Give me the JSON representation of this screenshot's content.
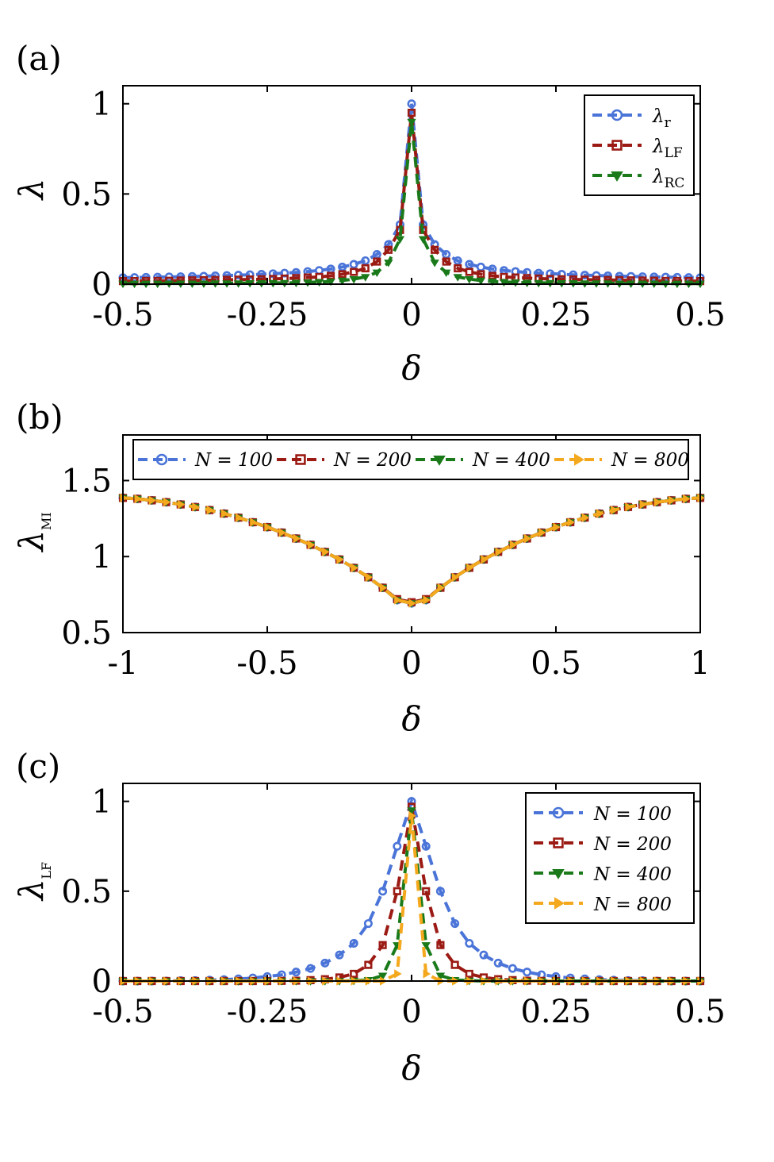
{
  "chart_data": [
    {
      "type": "line",
      "panel_label": "(a)",
      "xlabel": "δ",
      "ylabel": "λ",
      "xlim": [
        -0.5,
        0.5
      ],
      "ylim": [
        0,
        1.1
      ],
      "xticks": [
        -0.5,
        -0.25,
        0,
        0.25,
        0.5
      ],
      "xtick_labels": [
        "-0.5",
        "-0.25",
        "0",
        "0.25",
        "0.5"
      ],
      "yticks": [
        0,
        0.5,
        1
      ],
      "ytick_labels": [
        "0",
        "0.5",
        "1"
      ],
      "legend_position": "top-right",
      "x": [
        -0.5,
        -0.48,
        -0.46,
        -0.44,
        -0.42,
        -0.4,
        -0.38,
        -0.36,
        -0.34,
        -0.32,
        -0.3,
        -0.28,
        -0.26,
        -0.24,
        -0.22,
        -0.2,
        -0.18,
        -0.16,
        -0.14,
        -0.12,
        -0.1,
        -0.08,
        -0.06,
        -0.04,
        -0.02,
        0,
        0.02,
        0.04,
        0.06,
        0.08,
        0.1,
        0.12,
        0.14,
        0.16,
        0.18,
        0.2,
        0.22,
        0.24,
        0.26,
        0.28,
        0.3,
        0.32,
        0.34,
        0.36,
        0.38,
        0.4,
        0.42,
        0.44,
        0.46,
        0.48,
        0.5
      ],
      "series": [
        {
          "name": "λ",
          "sub": "r",
          "color": "#4a74d8",
          "marker": "circle",
          "values": [
            0.036,
            0.037,
            0.038,
            0.039,
            0.04,
            0.041,
            0.043,
            0.044,
            0.046,
            0.048,
            0.05,
            0.052,
            0.055,
            0.058,
            0.061,
            0.065,
            0.07,
            0.076,
            0.084,
            0.095,
            0.11,
            0.13,
            0.165,
            0.22,
            0.33,
            1.0,
            0.33,
            0.22,
            0.165,
            0.13,
            0.11,
            0.095,
            0.084,
            0.076,
            0.07,
            0.065,
            0.061,
            0.058,
            0.055,
            0.052,
            0.05,
            0.048,
            0.046,
            0.044,
            0.043,
            0.041,
            0.04,
            0.039,
            0.038,
            0.037,
            0.036
          ]
        },
        {
          "name": "λ",
          "sub": "LF",
          "color": "#9b1b14",
          "marker": "square",
          "values": [
            0.017,
            0.017,
            0.018,
            0.018,
            0.019,
            0.02,
            0.021,
            0.022,
            0.023,
            0.024,
            0.025,
            0.026,
            0.027,
            0.029,
            0.031,
            0.034,
            0.037,
            0.04,
            0.046,
            0.055,
            0.068,
            0.088,
            0.125,
            0.19,
            0.3,
            0.95,
            0.3,
            0.19,
            0.125,
            0.088,
            0.068,
            0.055,
            0.046,
            0.04,
            0.037,
            0.034,
            0.031,
            0.029,
            0.027,
            0.026,
            0.025,
            0.024,
            0.023,
            0.022,
            0.021,
            0.02,
            0.019,
            0.018,
            0.018,
            0.017,
            0.017
          ]
        },
        {
          "name": "λ",
          "sub": "RC",
          "color": "#1a7a1a",
          "marker": "triangle-down",
          "values": [
            0.003,
            0.003,
            0.003,
            0.003,
            0.004,
            0.004,
            0.004,
            0.004,
            0.005,
            0.005,
            0.005,
            0.006,
            0.006,
            0.007,
            0.007,
            0.008,
            0.01,
            0.012,
            0.015,
            0.02,
            0.028,
            0.04,
            0.065,
            0.12,
            0.25,
            0.9,
            0.25,
            0.12,
            0.065,
            0.04,
            0.028,
            0.02,
            0.015,
            0.012,
            0.01,
            0.008,
            0.007,
            0.007,
            0.006,
            0.006,
            0.005,
            0.005,
            0.005,
            0.004,
            0.004,
            0.004,
            0.004,
            0.003,
            0.003,
            0.003,
            0.003
          ]
        }
      ]
    },
    {
      "type": "line",
      "panel_label": "(b)",
      "xlabel": "δ",
      "ylabel": "λ",
      "ylabel_sub": "MI",
      "xlim": [
        -1,
        1
      ],
      "ylim": [
        0.5,
        1.8
      ],
      "xticks": [
        -1,
        -0.5,
        0,
        0.5,
        1
      ],
      "xtick_labels": [
        "-1",
        "-0.5",
        "0",
        "0.5",
        "1"
      ],
      "yticks": [
        0.5,
        1,
        1.5
      ],
      "ytick_labels": [
        "0.5",
        "1",
        "1.5"
      ],
      "legend_position": "top",
      "x": [
        -1,
        -0.95,
        -0.9,
        -0.85,
        -0.8,
        -0.75,
        -0.7,
        -0.65,
        -0.6,
        -0.55,
        -0.5,
        -0.45,
        -0.4,
        -0.35,
        -0.3,
        -0.25,
        -0.2,
        -0.15,
        -0.1,
        -0.05,
        0,
        0.05,
        0.1,
        0.15,
        0.2,
        0.25,
        0.3,
        0.35,
        0.4,
        0.45,
        0.5,
        0.55,
        0.6,
        0.65,
        0.7,
        0.75,
        0.8,
        0.85,
        0.9,
        0.95,
        1
      ],
      "series": [
        {
          "name": "N = 100",
          "color": "#4a74d8",
          "marker": "circle",
          "values": [
            1.386,
            1.38,
            1.37,
            1.358,
            1.343,
            1.326,
            1.306,
            1.283,
            1.256,
            1.226,
            1.194,
            1.158,
            1.119,
            1.077,
            1.031,
            0.981,
            0.926,
            0.864,
            0.795,
            0.714,
            0.693,
            0.714,
            0.795,
            0.864,
            0.926,
            0.981,
            1.031,
            1.077,
            1.119,
            1.158,
            1.194,
            1.226,
            1.256,
            1.283,
            1.306,
            1.326,
            1.343,
            1.358,
            1.37,
            1.38,
            1.386
          ]
        },
        {
          "name": "N = 200",
          "color": "#9b1b14",
          "marker": "square",
          "values": [
            1.386,
            1.38,
            1.37,
            1.358,
            1.343,
            1.326,
            1.306,
            1.283,
            1.256,
            1.226,
            1.194,
            1.158,
            1.119,
            1.077,
            1.031,
            0.981,
            0.926,
            0.864,
            0.795,
            0.72,
            0.7,
            0.72,
            0.795,
            0.864,
            0.926,
            0.981,
            1.031,
            1.077,
            1.119,
            1.158,
            1.194,
            1.226,
            1.256,
            1.283,
            1.306,
            1.326,
            1.343,
            1.358,
            1.37,
            1.38,
            1.386
          ]
        },
        {
          "name": "N = 400",
          "color": "#1a7a1a",
          "marker": "triangle-down",
          "values": [
            1.386,
            1.38,
            1.37,
            1.358,
            1.343,
            1.326,
            1.306,
            1.283,
            1.256,
            1.226,
            1.194,
            1.158,
            1.119,
            1.077,
            1.031,
            0.981,
            0.926,
            0.864,
            0.795,
            0.714,
            0.693,
            0.714,
            0.795,
            0.864,
            0.926,
            0.981,
            1.031,
            1.077,
            1.119,
            1.158,
            1.194,
            1.226,
            1.256,
            1.283,
            1.306,
            1.326,
            1.343,
            1.358,
            1.37,
            1.38,
            1.386
          ]
        },
        {
          "name": "N = 800",
          "color": "#f4a81d",
          "marker": "triangle-right",
          "values": [
            1.386,
            1.38,
            1.37,
            1.358,
            1.343,
            1.326,
            1.306,
            1.283,
            1.256,
            1.226,
            1.194,
            1.158,
            1.119,
            1.077,
            1.031,
            0.981,
            0.926,
            0.864,
            0.795,
            0.714,
            0.693,
            0.714,
            0.795,
            0.864,
            0.926,
            0.981,
            1.031,
            1.077,
            1.119,
            1.158,
            1.194,
            1.226,
            1.256,
            1.283,
            1.306,
            1.326,
            1.343,
            1.358,
            1.37,
            1.38,
            1.386
          ]
        }
      ]
    },
    {
      "type": "line",
      "panel_label": "(c)",
      "xlabel": "δ",
      "ylabel": "λ",
      "ylabel_sub": "LF",
      "xlim": [
        -0.5,
        0.5
      ],
      "ylim": [
        0,
        1.1
      ],
      "xticks": [
        -0.5,
        -0.25,
        0,
        0.25,
        0.5
      ],
      "xtick_labels": [
        "-0.5",
        "-0.25",
        "0",
        "0.25",
        "0.5"
      ],
      "yticks": [
        0,
        0.5,
        1
      ],
      "ytick_labels": [
        "0",
        "0.5",
        "1"
      ],
      "legend_position": "top-right",
      "x": [
        -0.5,
        -0.475,
        -0.45,
        -0.425,
        -0.4,
        -0.375,
        -0.35,
        -0.325,
        -0.3,
        -0.275,
        -0.25,
        -0.225,
        -0.2,
        -0.175,
        -0.15,
        -0.125,
        -0.1,
        -0.075,
        -0.05,
        -0.025,
        0,
        0.025,
        0.05,
        0.075,
        0.1,
        0.125,
        0.15,
        0.175,
        0.2,
        0.225,
        0.25,
        0.275,
        0.3,
        0.325,
        0.35,
        0.375,
        0.4,
        0.425,
        0.45,
        0.475,
        0.5
      ],
      "series": [
        {
          "name": "N = 100",
          "color": "#4a74d8",
          "marker": "circle",
          "values": [
            0.0,
            0.0,
            0.0,
            0.0,
            0.002,
            0.003,
            0.005,
            0.008,
            0.012,
            0.017,
            0.025,
            0.035,
            0.05,
            0.07,
            0.1,
            0.145,
            0.21,
            0.32,
            0.5,
            0.75,
            1.0,
            0.75,
            0.5,
            0.32,
            0.21,
            0.145,
            0.1,
            0.07,
            0.05,
            0.035,
            0.025,
            0.017,
            0.012,
            0.008,
            0.005,
            0.003,
            0.002,
            0.0,
            0.0,
            0.0,
            0.0
          ]
        },
        {
          "name": "N = 200",
          "color": "#9b1b14",
          "marker": "square",
          "values": [
            0.0,
            0.0,
            0.0,
            0.0,
            0.0,
            0.0,
            0.0,
            0.0,
            0.0,
            0.0,
            0.0,
            0.001,
            0.002,
            0.005,
            0.01,
            0.02,
            0.04,
            0.09,
            0.2,
            0.5,
            0.97,
            0.5,
            0.2,
            0.09,
            0.04,
            0.02,
            0.01,
            0.005,
            0.002,
            0.001,
            0.0,
            0.0,
            0.0,
            0.0,
            0.0,
            0.0,
            0.0,
            0.0,
            0.0,
            0.0,
            0.0
          ]
        },
        {
          "name": "N = 400",
          "color": "#1a7a1a",
          "marker": "triangle-down",
          "values": [
            0.0,
            0.0,
            0.0,
            0.0,
            0.0,
            0.0,
            0.0,
            0.0,
            0.0,
            0.0,
            0.0,
            0.0,
            0.0,
            0.0,
            0.0,
            0.0,
            0.002,
            0.006,
            0.03,
            0.2,
            0.95,
            0.2,
            0.03,
            0.006,
            0.002,
            0.0,
            0.0,
            0.0,
            0.0,
            0.0,
            0.0,
            0.0,
            0.0,
            0.0,
            0.0,
            0.0,
            0.0,
            0.0,
            0.0,
            0.0,
            0.0
          ]
        },
        {
          "name": "N = 800",
          "color": "#f4a81d",
          "marker": "triangle-right",
          "values": [
            0.0,
            0.0,
            0.0,
            0.0,
            0.0,
            0.0,
            0.0,
            0.0,
            0.0,
            0.0,
            0.0,
            0.0,
            0.0,
            0.0,
            0.0,
            0.0,
            0.0,
            0.0,
            0.0,
            0.04,
            0.92,
            0.04,
            0.0,
            0.0,
            0.0,
            0.0,
            0.0,
            0.0,
            0.0,
            0.0,
            0.0,
            0.0,
            0.0,
            0.0,
            0.0,
            0.0,
            0.0,
            0.0,
            0.0,
            0.0,
            0.0
          ]
        }
      ]
    }
  ]
}
